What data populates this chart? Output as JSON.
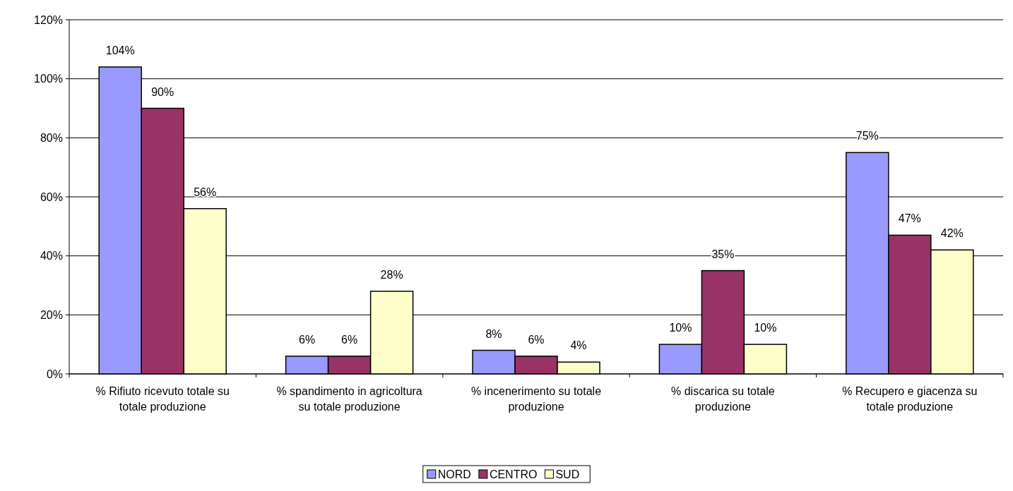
{
  "chart_data": {
    "type": "bar",
    "categories": [
      "% Rifiuto ricevuto totale su totale produzione",
      "% spandimento in agricoltura su totale produzione",
      "% incenerimento su totale produzione",
      "% discarica su totale produzione",
      "% Recupero e giacenza su totale produzione"
    ],
    "series": [
      {
        "name": "NORD",
        "color": "#9999ff",
        "values": [
          104,
          6,
          8,
          10,
          75
        ],
        "value_labels": [
          "104%",
          "6%",
          "8%",
          "10%",
          "75%"
        ]
      },
      {
        "name": "CENTRO",
        "color": "#993366",
        "values": [
          90,
          6,
          6,
          35,
          47
        ],
        "value_labels": [
          "90%",
          "6%",
          "6%",
          "35%",
          "47%"
        ]
      },
      {
        "name": "SUD",
        "color": "#ffffcc",
        "values": [
          56,
          28,
          4,
          10,
          42
        ],
        "value_labels": [
          "56%",
          "28%",
          "4%",
          "10%",
          "42%"
        ]
      }
    ],
    "ylim": [
      0,
      120
    ],
    "yticks": [
      {
        "value": 0,
        "label": "0%"
      },
      {
        "value": 20,
        "label": "20%"
      },
      {
        "value": 40,
        "label": "40%"
      },
      {
        "value": 60,
        "label": "60%"
      },
      {
        "value": 80,
        "label": "80%"
      },
      {
        "value": 100,
        "label": "100%"
      },
      {
        "value": 120,
        "label": "120%"
      }
    ],
    "grid": "y",
    "legend": "bottom"
  }
}
